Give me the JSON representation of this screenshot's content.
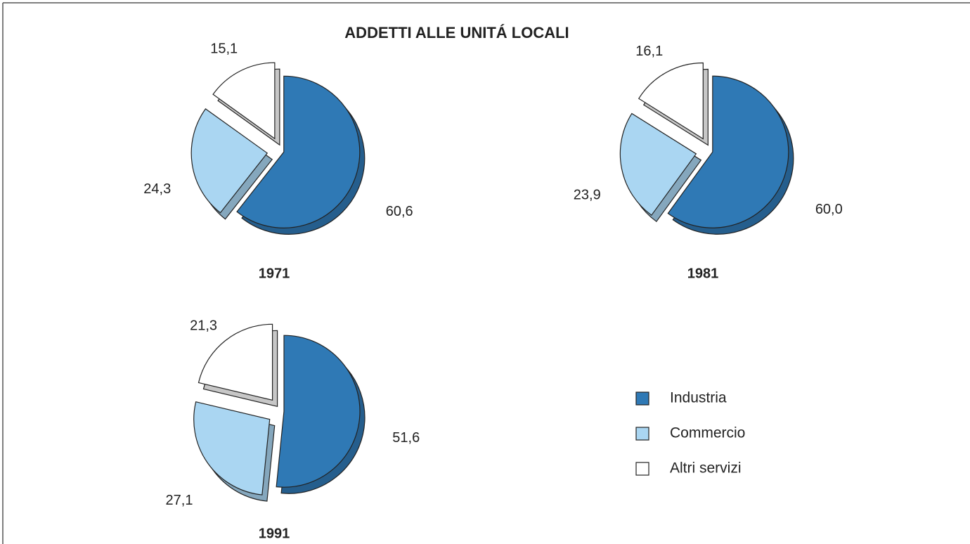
{
  "title": "ADDETTI ALLE UNITÁ LOCALI",
  "chart_data": [
    {
      "type": "pie",
      "title": "1971",
      "categories": [
        "Industria",
        "Commercio",
        "Altri servizi"
      ],
      "values": [
        60.6,
        24.3,
        15.1
      ],
      "value_labels": [
        "60,6",
        "24,3",
        "15,1"
      ],
      "colors": [
        "#2f79b5",
        "#aad6f2",
        "#ffffff"
      ]
    },
    {
      "type": "pie",
      "title": "1981",
      "categories": [
        "Industria",
        "Commercio",
        "Altri servizi"
      ],
      "values": [
        60.0,
        23.9,
        16.1
      ],
      "value_labels": [
        "60,0",
        "23,9",
        "16,1"
      ],
      "colors": [
        "#2f79b5",
        "#aad6f2",
        "#ffffff"
      ]
    },
    {
      "type": "pie",
      "title": "1991",
      "categories": [
        "Industria",
        "Commercio",
        "Altri servizi"
      ],
      "values": [
        51.6,
        27.1,
        21.3
      ],
      "value_labels": [
        "51,6",
        "27,1",
        "21,3"
      ],
      "colors": [
        "#2f79b5",
        "#aad6f2",
        "#ffffff"
      ]
    }
  ]
}
